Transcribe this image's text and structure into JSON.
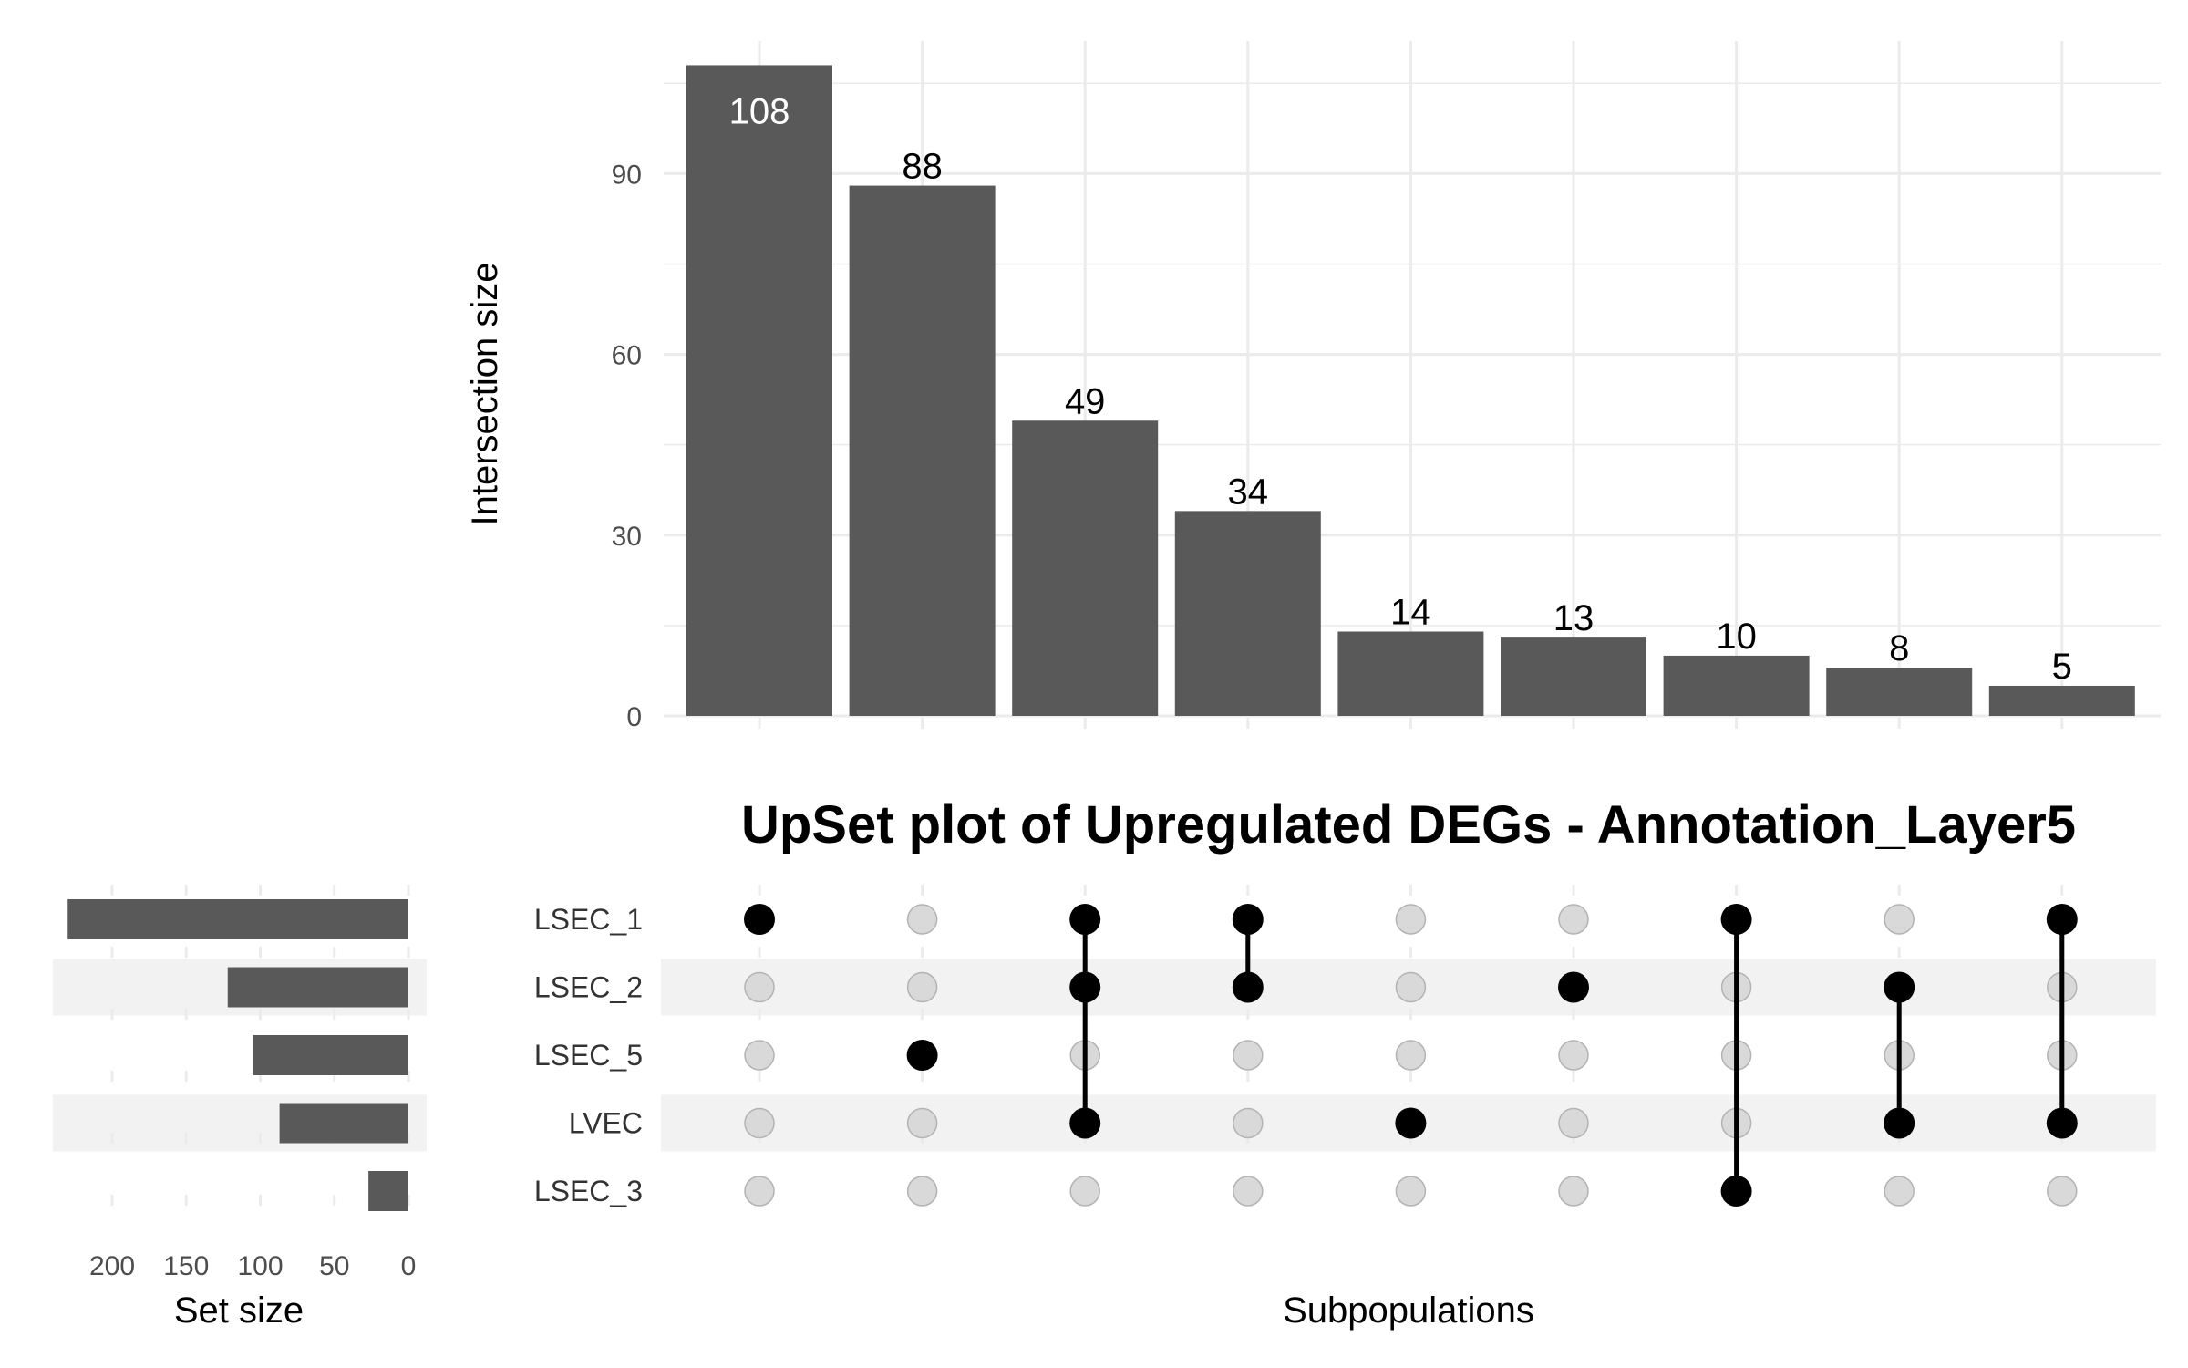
{
  "chart_data": {
    "type": "bar",
    "title": "UpSet plot of Upregulated DEGs - Annotation_Layer5",
    "intersection_axis": {
      "ylabel": "Intersection size",
      "ylim": [
        0,
        112
      ],
      "ticks": [
        "0",
        "30",
        "60",
        "90"
      ]
    },
    "xlabel": "Subpopulations",
    "intersections": [
      {
        "size": 108,
        "sets": [
          "LSEC_1"
        ]
      },
      {
        "size": 88,
        "sets": [
          "LSEC_5"
        ]
      },
      {
        "size": 49,
        "sets": [
          "LSEC_1",
          "LSEC_2",
          "LVEC"
        ]
      },
      {
        "size": 34,
        "sets": [
          "LSEC_1",
          "LSEC_2"
        ]
      },
      {
        "size": 14,
        "sets": [
          "LVEC"
        ]
      },
      {
        "size": 13,
        "sets": [
          "LSEC_2"
        ]
      },
      {
        "size": 10,
        "sets": [
          "LSEC_1",
          "LSEC_3"
        ]
      },
      {
        "size": 8,
        "sets": [
          "LSEC_2",
          "LVEC"
        ]
      },
      {
        "size": 5,
        "sets": [
          "LSEC_1",
          "LVEC"
        ]
      }
    ],
    "intersection_labels": [
      "108",
      "88",
      "49",
      "34",
      "14",
      "13",
      "10",
      "8",
      "5"
    ],
    "sets": [
      "LSEC_1",
      "LSEC_2",
      "LSEC_5",
      "LVEC",
      "LSEC_3"
    ],
    "set_sizes": [
      230,
      122,
      105,
      87,
      27
    ],
    "set_size_axis": {
      "xlabel": "Set size",
      "ticks": [
        "200",
        "150",
        "100",
        "50",
        "0"
      ],
      "tick_values": [
        200,
        150,
        100,
        50,
        0
      ]
    },
    "colors": {
      "bar": "#595959",
      "dot_active": "#000000",
      "dot_inactive": "#d9d9d9",
      "dot_inactive_stroke": "#b3b3b3",
      "grid": "#ebebeb",
      "stripe": "#f2f2f2"
    }
  }
}
